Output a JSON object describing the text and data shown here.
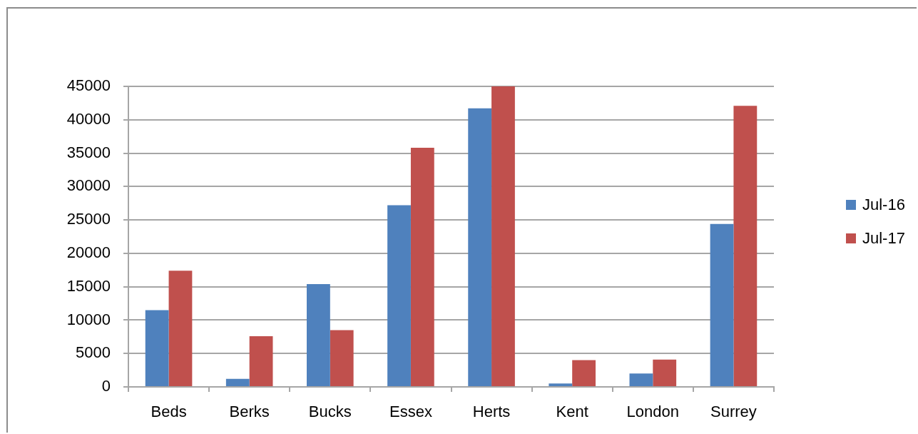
{
  "chart_data": {
    "type": "bar",
    "categories": [
      "Beds",
      "Berks",
      "Bucks",
      "Essex",
      "Herts",
      "Kent",
      "London",
      "Surrey"
    ],
    "series": [
      {
        "name": "Jul-16",
        "color": "#4f81bd",
        "values": [
          11500,
          1200,
          15400,
          27200,
          41700,
          500,
          2000,
          24400
        ]
      },
      {
        "name": "Jul-17",
        "color": "#c0504d",
        "values": [
          17400,
          7600,
          8500,
          35800,
          45000,
          4000,
          4100,
          42100
        ]
      }
    ],
    "ylim": [
      0,
      45000
    ],
    "yticks": [
      0,
      5000,
      10000,
      15000,
      20000,
      25000,
      30000,
      35000,
      40000,
      45000
    ],
    "grid": "y",
    "legend": "right"
  }
}
